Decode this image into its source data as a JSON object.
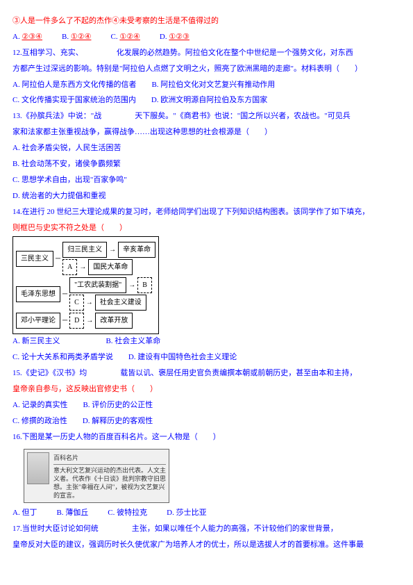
{
  "l1": "③人是一件多么了不起的杰作④未受考察的生活是不值得过的",
  "q11": {
    "opts_label_a": "A.",
    "opts_label_b": "B.",
    "opts_label_c": "C.",
    "opts_label_d": "D.",
    "a": "②③④",
    "b": "①②④",
    "c": "①②④",
    "d": "①②③"
  },
  "q12": {
    "stem1": "12.互相学习、充实、",
    "stem_gap": "",
    "stem2": "化发展的必然趋势。阿拉伯文化在整个中世纪是一个强势文化，对东西",
    "stem3": "方都产生过深远的影响。特别是\"阿拉伯人点燃了文明之火，照亮了欧洲黑暗的走廊\"。材料表明（　　）",
    "a": "A. 阿拉伯人是东西方文化传播的信者",
    "b": "B. 阿拉伯文化对文艺复兴有推动作用",
    "c": "C. 文化传播实现于国家统治的范围内",
    "d": "D. 欧洲文明源自阿拉伯及东方国家"
  },
  "q13": {
    "stem1": "13.《孙膑兵法》中说：\"战",
    "stem2": "天下服矣。\"《商君书》也说：\"国之所以兴者，农战也。\"可见兵",
    "stem3": "家和法家都主张重视战争，赢得战争……出现这种思想的社会根源是（　　）",
    "a": "A. 社会矛盾尖锐，人民生活困苦",
    "b": "B. 社会动荡不安，诸侯争霸频繁",
    "c": "C. 思想学术自由，出现\"百家争鸣\"",
    "d": "D. 统治者的大力提倡和重视"
  },
  "q14": {
    "stem1": "14.在进行 20 世纪三大理论成果的复习时，老师给同学们出现了下列知识结构图表。该同学作了如下填充，",
    "stem2": "则框巴与史实不符之处是（　　）",
    "diagram": {
      "r1_left": "三民主义",
      "r1_mid_top": "归三民主义",
      "r1_mid_bot": "A",
      "r1_right_top": "辛亥革命",
      "r1_right_bot": "国民大革命",
      "r2_left": "毛泽东思想",
      "r2_mid_top": "\"工农武装割据\"",
      "r2_mid_bot": "C",
      "r2_right_top": "B",
      "r2_right_bot": "社会主义建设",
      "r3_left": "邓小平理论",
      "r3_mid": "D",
      "r3_right": "改革开放"
    },
    "a": "A. 新三民主义",
    "b": "B. 社会主义革命",
    "c": "C. 论十大关系和两类矛盾学说",
    "d": "D. 建设有中国特色社会主义理论"
  },
  "q15": {
    "stem1": "15.《史记》《汉书》均",
    "stem2": "载皆以讥、褒层任用史官负责编撰本朝或前朝历史，甚至由本和主持，",
    "stem3": "皇帝亲自参与，这反映出官修史书（　　）",
    "a": "A. 记录的真实性",
    "b": "B. 评价历史的公正性",
    "c": "C. 修撰的政治性",
    "d": "D. 解释历史的客观性"
  },
  "q16": {
    "stem": "16.下图是某一历史人物的百度百科名片。这一人物是（　　）",
    "card_title": "百科名片",
    "card_text": "意大利文艺复兴运动的杰出代表。人文主义者。代表作《十日谈》批判宗教守旧思想。主张\"幸福在人间\"，被视为文艺复兴的宣言。",
    "a": "A. 但丁",
    "b": "B. 薄伽丘",
    "c": "C. 彼特拉克",
    "d": "D. 莎士比亚"
  },
  "q17": {
    "stem1": "17.当世时大臣讨论如何统",
    "stem2": "主张，如果以唯任个人能力的高强，不计较他们的家世背景，",
    "stem3": "皇帝反对大臣的建议，强调历时长久使优家广为培养人才的优士，所以是选拔人才的首要标准。这件事最"
  },
  "colors": {
    "text": "#0000ff",
    "highlight": "#ff0000",
    "background": "#ffffff"
  }
}
